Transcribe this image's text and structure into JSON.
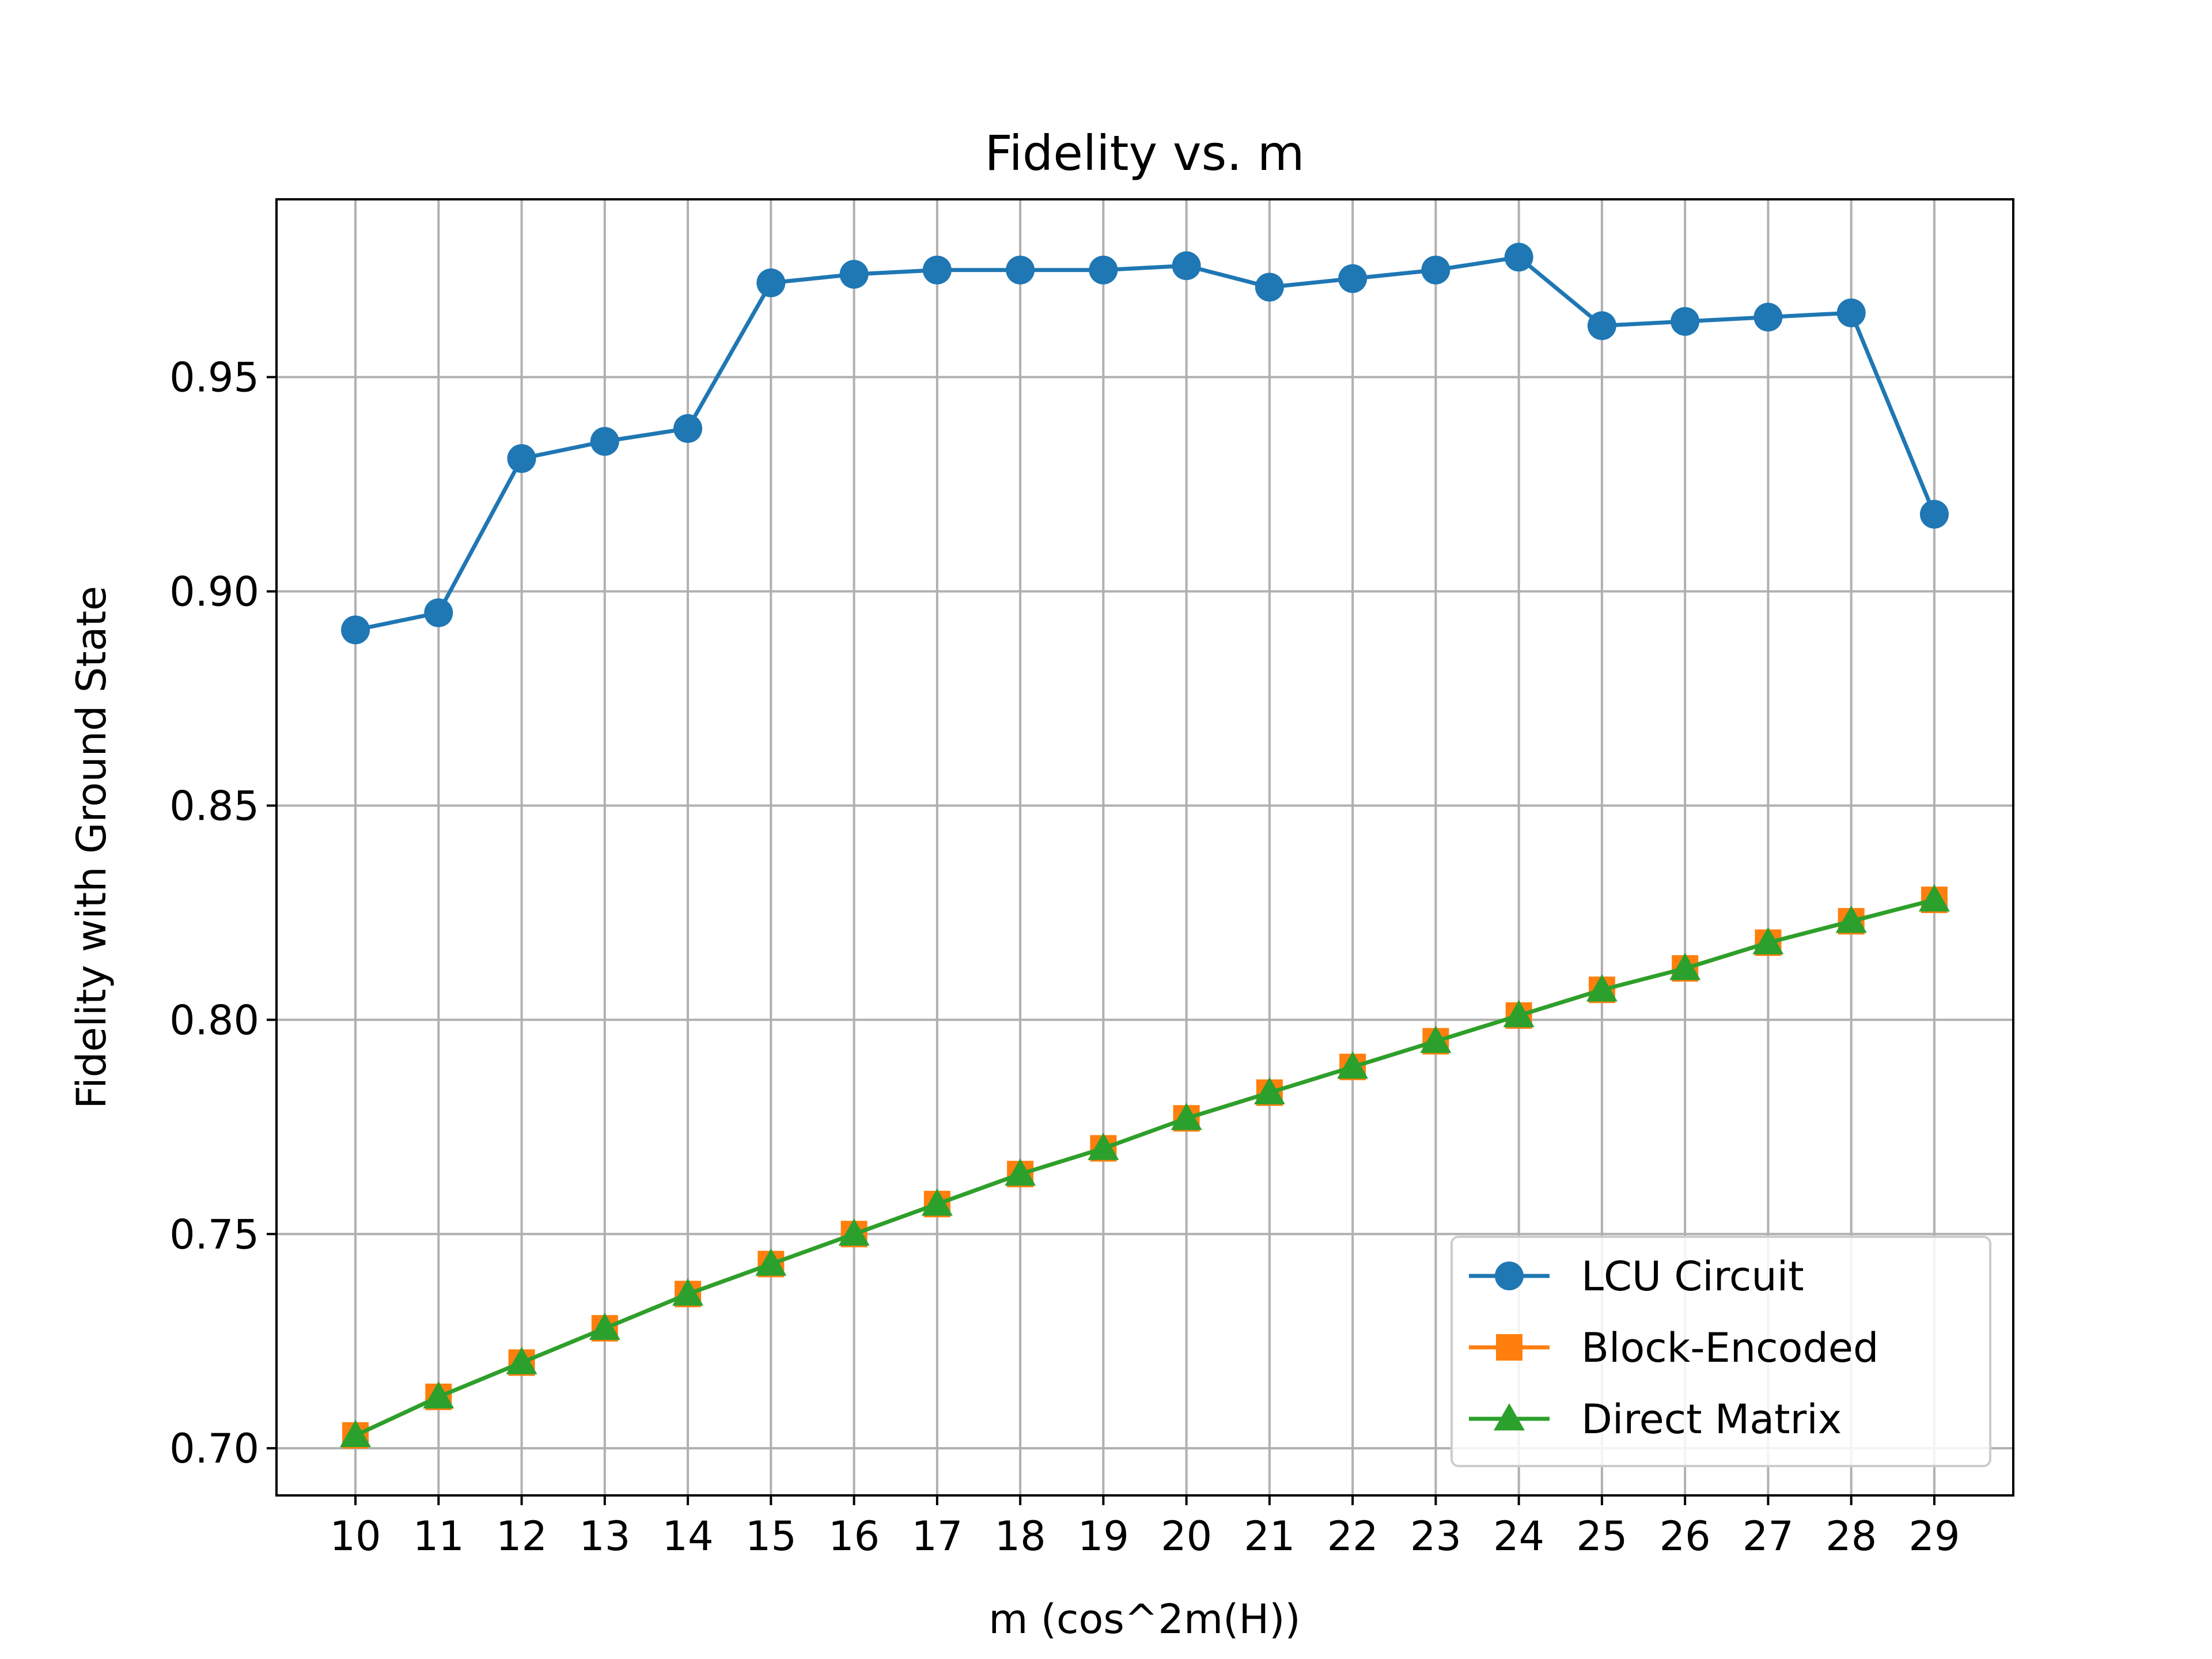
{
  "chart_data": {
    "type": "line",
    "title": "Fidelity vs. m",
    "xlabel": "m (cos^2m(H))",
    "ylabel": "Fidelity with Ground State",
    "x": [
      10,
      11,
      12,
      13,
      14,
      15,
      16,
      17,
      18,
      19,
      20,
      21,
      22,
      23,
      24,
      25,
      26,
      27,
      28,
      29
    ],
    "xticks": [
      "10",
      "11",
      "12",
      "13",
      "14",
      "15",
      "16",
      "17",
      "18",
      "19",
      "20",
      "21",
      "22",
      "23",
      "24",
      "25",
      "26",
      "27",
      "28",
      "29"
    ],
    "yticks": [
      "0.70",
      "0.75",
      "0.80",
      "0.85",
      "0.90",
      "0.95"
    ],
    "ylim": [
      0.689,
      0.9915
    ],
    "grid": true,
    "legend_position": "lower-right",
    "series": [
      {
        "name": "LCU Circuit",
        "color": "#1f77b4",
        "marker": "circle",
        "values": [
          0.891,
          0.895,
          0.931,
          0.935,
          0.938,
          0.972,
          0.974,
          0.975,
          0.975,
          0.975,
          0.976,
          0.971,
          0.973,
          0.975,
          0.978,
          0.962,
          0.963,
          0.964,
          0.965,
          0.918
        ]
      },
      {
        "name": "Block-Encoded",
        "color": "#ff7f0e",
        "marker": "square",
        "values": [
          0.703,
          0.712,
          0.72,
          0.728,
          0.736,
          0.743,
          0.75,
          0.757,
          0.764,
          0.77,
          0.777,
          0.783,
          0.789,
          0.795,
          0.801,
          0.807,
          0.812,
          0.818,
          0.823,
          0.828
        ]
      },
      {
        "name": "Direct Matrix",
        "color": "#2ca02c",
        "marker": "triangle",
        "values": [
          0.703,
          0.712,
          0.72,
          0.728,
          0.736,
          0.743,
          0.75,
          0.757,
          0.764,
          0.77,
          0.777,
          0.783,
          0.789,
          0.795,
          0.801,
          0.807,
          0.812,
          0.818,
          0.823,
          0.828
        ]
      }
    ]
  }
}
